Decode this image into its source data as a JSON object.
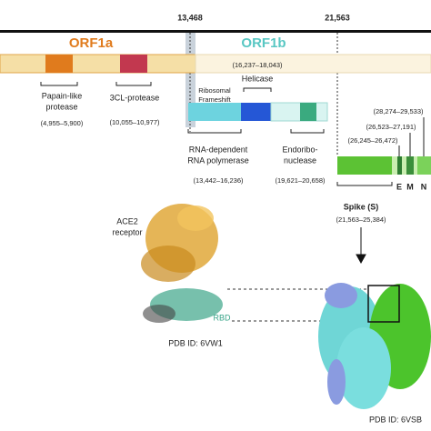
{
  "positions": {
    "orf1b_start": "13,468",
    "spike_start": "21,563"
  },
  "genes": {
    "orf1a": "ORF1a",
    "orf1b": "ORF1b"
  },
  "frameshift": [
    "Ribosomal",
    "Frameshift"
  ],
  "helicase": {
    "label": "Helicase",
    "range": "(16,237–18,043)"
  },
  "papain": {
    "label": [
      "Papain-like",
      "protease"
    ],
    "range": "(4,955–5,900)"
  },
  "clpro": {
    "label": "3CL-protease",
    "range": "(10,055–10,977)"
  },
  "rdrp": {
    "label": [
      "RNA-dependent",
      "RNA polymerase"
    ],
    "range": "(13,442–16,236)"
  },
  "endo": {
    "label": [
      "Endoribo-",
      "nuclease"
    ],
    "range": "(19,621–20,658)"
  },
  "n_range": "(28,274–29,533)",
  "m_range": "(26,523–27,191)",
  "e_range": "(26,245–26,472)",
  "structural": [
    "E",
    "M",
    "N"
  ],
  "spike": {
    "label": "Spike (S)",
    "range": "(21,563–25,384)"
  },
  "ace2": [
    "ACE2",
    "receptor"
  ],
  "rbd": "RBD",
  "pdb": [
    "PDB ID: 6VW1",
    "PDB ID: 6VSB"
  ]
}
